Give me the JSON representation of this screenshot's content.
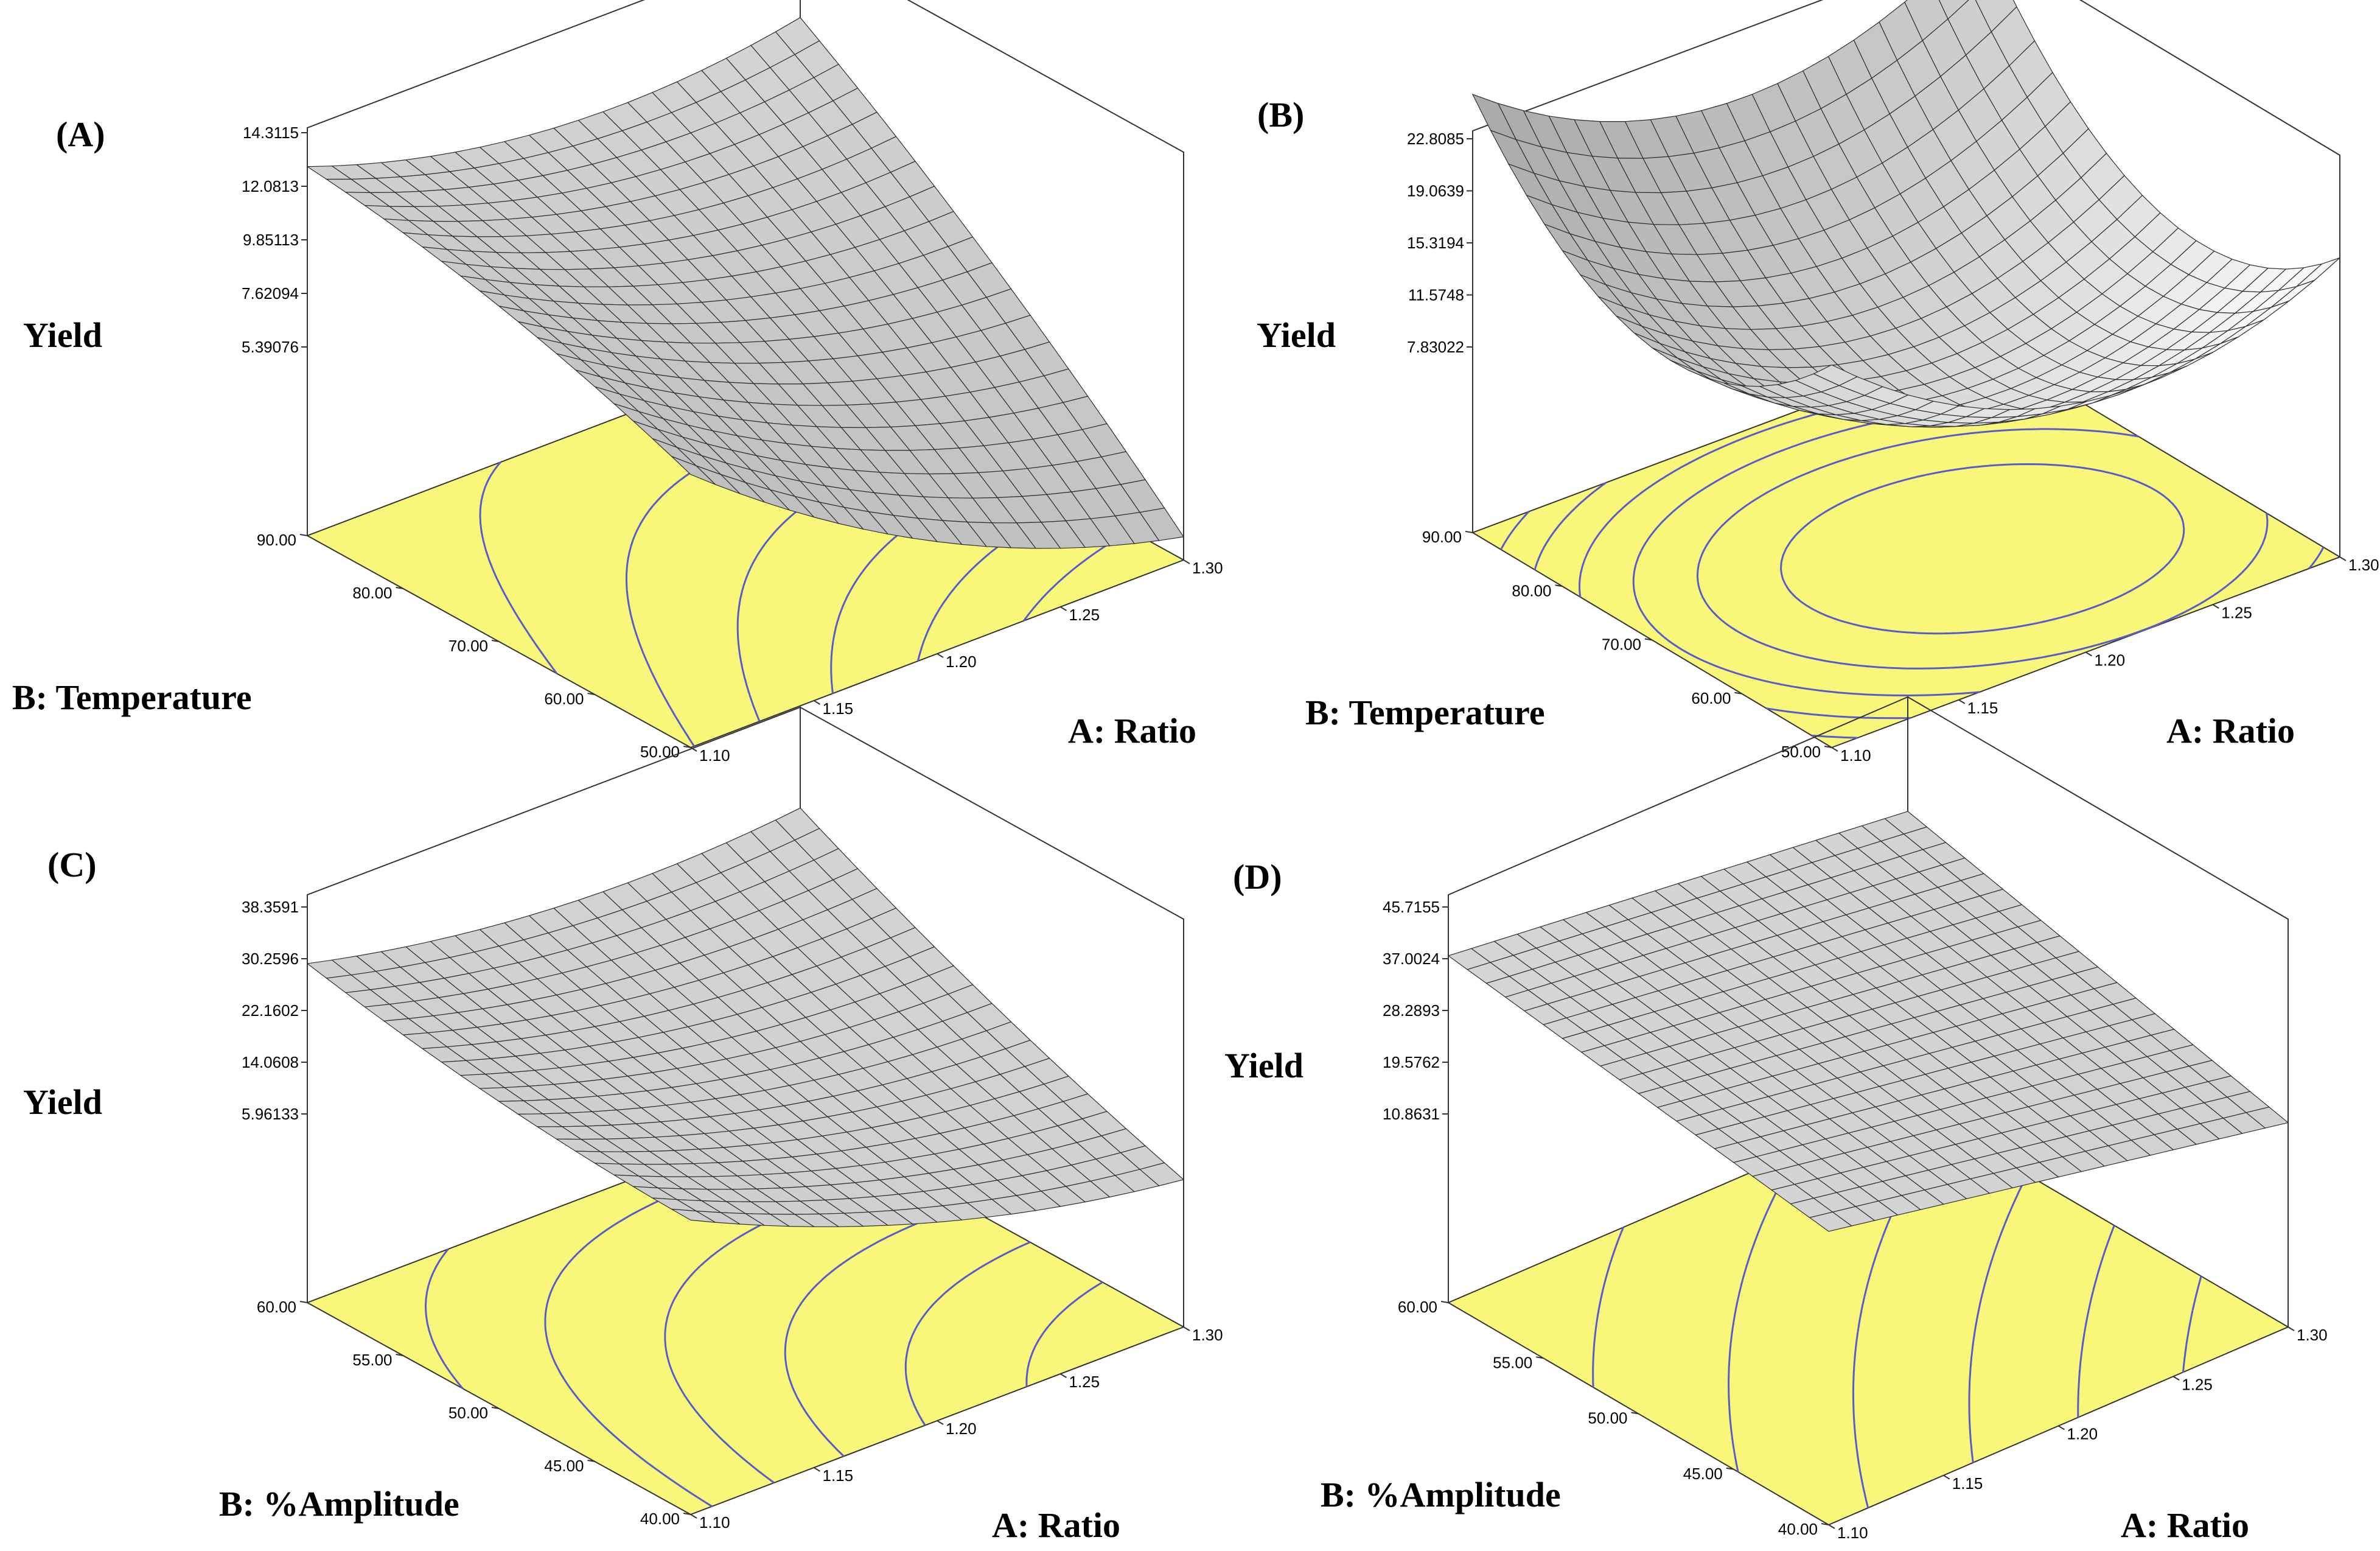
{
  "chart_data": [
    {
      "type": "surface3d",
      "panel_label": "(A)",
      "zlabel": "Yield",
      "xlabel": "A: Ratio",
      "ylabel": "B: Temperature",
      "x_ticks": [
        "1.10",
        "1.15",
        "1.20",
        "1.25",
        "1.30"
      ],
      "y_ticks": [
        "50.00",
        "60.00",
        "70.00",
        "80.00",
        "90.00"
      ],
      "z_ticks": [
        "5.39076",
        "7.62094",
        "9.85113",
        "12.0813",
        "14.3115"
      ],
      "xlim": [
        1.1,
        1.3
      ],
      "ylim": [
        50,
        90
      ],
      "zlim": [
        5.39076,
        14.3115
      ],
      "surface_model": {
        "base": 7.0,
        "ax": -3.0,
        "by": 4.2,
        "axby": 2.2,
        "ax2": 1.5,
        "by2": -0.6
      },
      "floor_color": "#f8f77a",
      "contour_color": "#5a5ac8"
    },
    {
      "type": "surface3d",
      "panel_label": "(B)",
      "zlabel": "Yield",
      "xlabel": "A: Ratio",
      "ylabel": "B: Temperature",
      "x_ticks": [
        "1.10",
        "1.15",
        "1.20",
        "1.25",
        "1.30"
      ],
      "y_ticks": [
        "50.00",
        "60.00",
        "70.00",
        "80.00",
        "90.00"
      ],
      "z_ticks": [
        "7.83022",
        "11.5748",
        "15.3194",
        "19.0639",
        "22.8085"
      ],
      "xlim": [
        1.1,
        1.3
      ],
      "ylim": [
        50,
        90
      ],
      "zlim": [
        7.83022,
        22.8085
      ],
      "surface_model": {
        "base": 7.0,
        "ax": -2.0,
        "by": 3.0,
        "axby": 1.0,
        "ax2": 6.5,
        "by2": 8.5
      },
      "floor_color": "#f8f77a",
      "contour_color": "#5a5ac8"
    },
    {
      "type": "surface3d",
      "panel_label": "(C)",
      "zlabel": "Yield",
      "xlabel": "A: Ratio",
      "ylabel": "B: %Amplitude",
      "x_ticks": [
        "1.10",
        "1.15",
        "1.20",
        "1.25",
        "1.30"
      ],
      "y_ticks": [
        "40.00",
        "45.00",
        "50.00",
        "55.00",
        "60.00"
      ],
      "z_ticks": [
        "5.96133",
        "14.0608",
        "22.1602",
        "30.2596",
        "38.3591"
      ],
      "xlim": [
        1.1,
        1.3
      ],
      "ylim": [
        40,
        60
      ],
      "zlim": [
        5.96133,
        38.3591
      ],
      "surface_model": {
        "base": 14.0,
        "ax": -7.0,
        "by": 8.0,
        "axby": 4.5,
        "ax2": 3.5,
        "by2": 1.5
      },
      "floor_color": "#f8f77a",
      "contour_color": "#5a5ac8"
    },
    {
      "type": "surface3d",
      "panel_label": "(D)",
      "zlabel": "Yield",
      "xlabel": "A: Ratio",
      "ylabel": "B: %Amplitude",
      "x_ticks": [
        "1.10",
        "1.15",
        "1.20",
        "1.25",
        "1.30"
      ],
      "y_ticks": [
        "40.00",
        "45.00",
        "50.00",
        "55.00",
        "60.00"
      ],
      "z_ticks": [
        "10.8631",
        "19.5762",
        "28.2893",
        "37.0024",
        "45.7155"
      ],
      "xlim": [
        1.1,
        1.3
      ],
      "ylim": [
        40,
        60
      ],
      "zlim": [
        10.8631,
        45.7155
      ],
      "surface_model": {
        "base": 27.0,
        "ax": -6.0,
        "by": 6.0,
        "axby": 1.5,
        "ax2": 0.0,
        "by2": 0.0
      },
      "floor_color": "#f8f77a",
      "contour_color": "#5a5ac8"
    }
  ]
}
